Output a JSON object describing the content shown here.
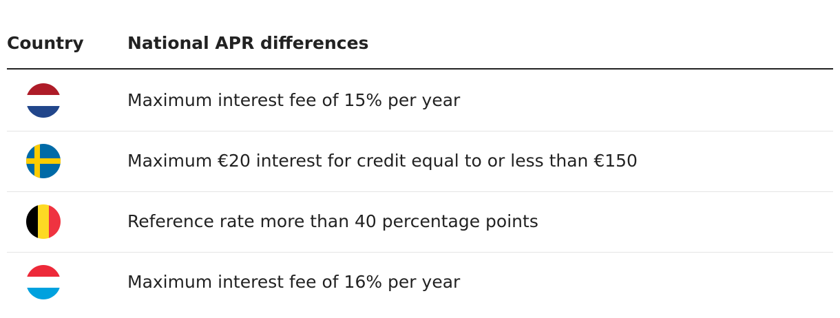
{
  "table": {
    "header": [
      "Country",
      "National APR differences"
    ],
    "rows": [
      "Maximum interest fee of 15% per year",
      "Maximum €20 interest for credit equal to or less than €150",
      "Reference rate more than 40 percentage points",
      "Maximum interest fee of 16% per year"
    ]
  }
}
